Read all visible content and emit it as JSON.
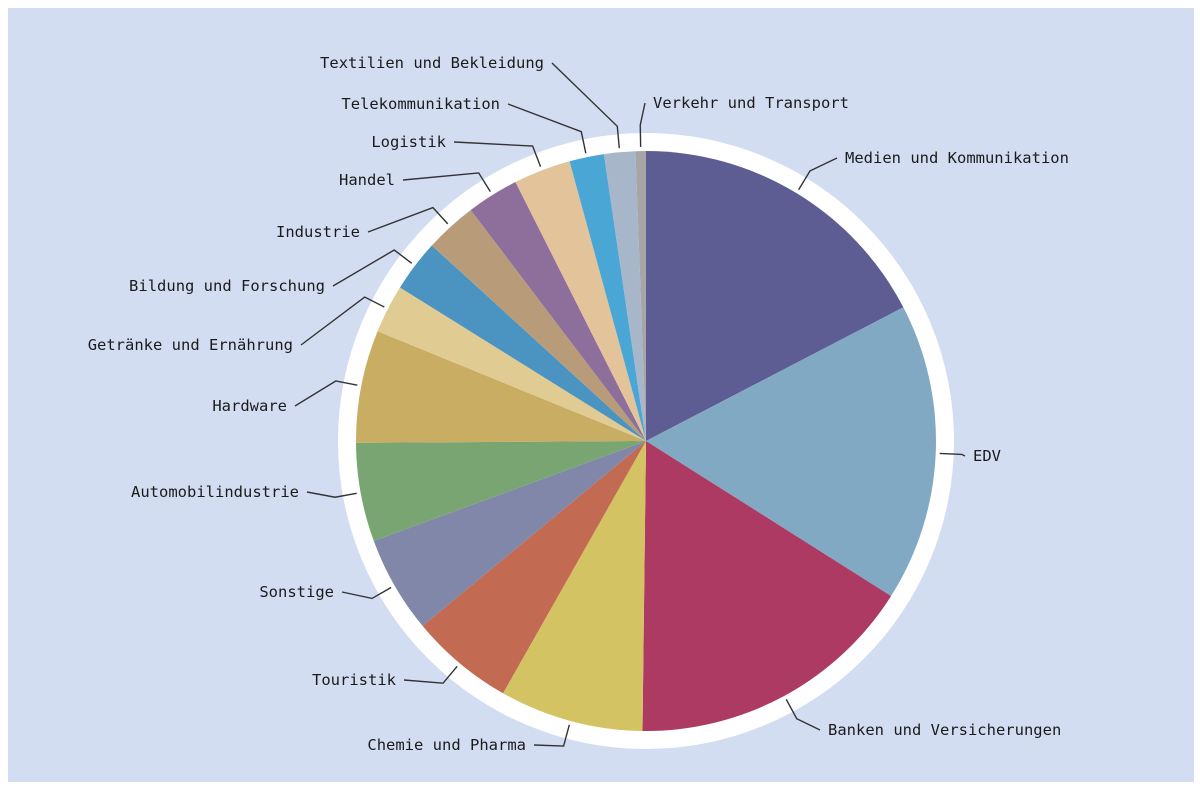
{
  "chart_data": {
    "type": "pie",
    "title": "",
    "start_angle_deg": 0,
    "direction": "clockwise",
    "slices": [
      {
        "label": "Medien und Kommunikation",
        "value": 18.0,
        "color": "#5d5d94"
      },
      {
        "label": "EDV",
        "value": 17.2,
        "color": "#82a9c3"
      },
      {
        "label": "Banken und Versicherungen",
        "value": 16.8,
        "color": "#ad3a62"
      },
      {
        "label": "Chemie und Pharma",
        "value": 8.3,
        "color": "#d3c363"
      },
      {
        "label": "Touristik",
        "value": 6.0,
        "color": "#c26b52"
      },
      {
        "label": "Sonstige",
        "value": 5.6,
        "color": "#8087a8"
      },
      {
        "label": "Automobilindustrie",
        "value": 5.7,
        "color": "#79a572"
      },
      {
        "label": "Hardware",
        "value": 6.5,
        "color": "#c8ad62"
      },
      {
        "label": "Getränke und Ernährung",
        "value": 2.8,
        "color": "#e0cb92"
      },
      {
        "label": "Bildung und Forschung",
        "value": 3.0,
        "color": "#4b93c1"
      },
      {
        "label": "Industrie",
        "value": 3.0,
        "color": "#b89c7a"
      },
      {
        "label": "Handel",
        "value": 3.0,
        "color": "#8e6f9c"
      },
      {
        "label": "Logistik",
        "value": 3.3,
        "color": "#e2c39a"
      },
      {
        "label": "Telekommunikation",
        "value": 2.0,
        "color": "#4aa7d5"
      },
      {
        "label": "Textilien und Bekleidung",
        "value": 1.8,
        "color": "#a7b6c8"
      },
      {
        "label": "Verkehr und Transport",
        "value": 0.6,
        "color": "#a6a6a6"
      }
    ]
  },
  "colors": {
    "background": "#d3ddf2",
    "outer_ring": "#ffffff"
  }
}
